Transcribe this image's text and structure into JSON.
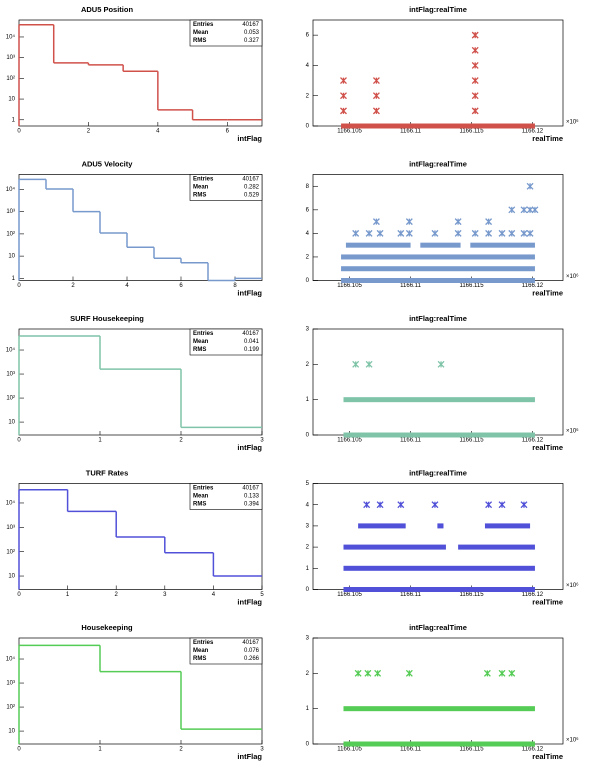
{
  "chart_data": [
    {
      "type": "histogram",
      "title": "ADU5 Position",
      "xlabel": "intFlag",
      "color": "#d0504a",
      "log_y": true,
      "bins": [
        0,
        1,
        2,
        3,
        4,
        5,
        6,
        7
      ],
      "counts": [
        38930,
        560,
        450,
        220,
        3,
        1,
        1
      ],
      "xlim": [
        0,
        7
      ],
      "xticks": [
        0,
        2,
        4,
        6
      ],
      "ylim": [
        0.5,
        66000
      ],
      "yticks": [
        1,
        10,
        {
          "value": 100,
          "label": "10²"
        },
        {
          "value": 1000,
          "label": "10³"
        },
        {
          "value": 10000,
          "label": "10⁴"
        }
      ],
      "stats": [
        {
          "label": "Entries",
          "value": 40167
        },
        {
          "label": "Mean",
          "value": 0.053
        },
        {
          "label": "RMS",
          "value": 0.327
        }
      ]
    },
    {
      "type": "scatter",
      "title": "intFlag:realTime",
      "xlabel": "realTime",
      "x_exponent": "×10⁶",
      "color": "#d0504a",
      "xlim": [
        1166.102,
        1166.1225
      ],
      "xticks": [
        1166.105,
        1166.11,
        1166.115,
        1166.12
      ],
      "ylim": [
        0,
        7
      ],
      "yticks": [
        0,
        2,
        4,
        6
      ],
      "bands": [
        {
          "y": 0,
          "x": [
            1166.1043,
            1166.1202
          ]
        }
      ],
      "points": {
        "x": [
          1166.1045,
          1166.1045,
          1166.1045,
          1166.1072,
          1166.1072,
          1166.1072,
          1166.1153,
          1166.1153,
          1166.1153,
          1166.1153,
          1166.1153,
          1166.1153
        ],
        "y": [
          1,
          2,
          3,
          1,
          2,
          3,
          1,
          2,
          3,
          4,
          5,
          6
        ]
      }
    },
    {
      "type": "histogram",
      "title": "ADU5 Velocity",
      "xlabel": "intFlag",
      "color": "#7799cc",
      "log_y": true,
      "bins": [
        0,
        1,
        2,
        3,
        4,
        5,
        6,
        7,
        8,
        9
      ],
      "counts": [
        28500,
        10500,
        1000,
        110,
        25,
        8,
        5,
        0,
        1
      ],
      "xlim": [
        0,
        9
      ],
      "xticks": [
        0,
        2,
        4,
        6,
        8
      ],
      "ylim": [
        0.8,
        47000
      ],
      "yticks": [
        1,
        10,
        {
          "value": 100,
          "label": "10²"
        },
        {
          "value": 1000,
          "label": "10³"
        },
        {
          "value": 10000,
          "label": "10⁴"
        }
      ],
      "stats": [
        {
          "label": "Entries",
          "value": 40167
        },
        {
          "label": "Mean",
          "value": 0.282
        },
        {
          "label": "RMS",
          "value": 0.529
        }
      ]
    },
    {
      "type": "scatter",
      "title": "intFlag:realTime",
      "xlabel": "realTime",
      "x_exponent": "×10⁶",
      "color": "#7799cc",
      "xlim": [
        1166.102,
        1166.1225
      ],
      "xticks": [
        1166.105,
        1166.11,
        1166.115,
        1166.12
      ],
      "ylim": [
        0,
        9
      ],
      "yticks": [
        0,
        2,
        4,
        6,
        8
      ],
      "bands": [
        {
          "y": 0,
          "x": [
            1166.1043,
            1166.1202
          ]
        },
        {
          "y": 1,
          "x": [
            1166.1043,
            1166.1202
          ]
        },
        {
          "y": 2,
          "x": [
            1166.1043,
            1166.1202
          ]
        },
        {
          "y": 3,
          "x": [
            1166.1047,
            1166.11
          ]
        },
        {
          "y": 3,
          "x": [
            1166.1108,
            1166.1141
          ]
        },
        {
          "y": 3,
          "x": [
            1166.1149,
            1166.1202
          ]
        }
      ],
      "points": {
        "x": [
          1166.1055,
          1166.1066,
          1166.1075,
          1166.1092,
          1166.1099,
          1166.112,
          1166.1139,
          1166.1153,
          1166.1164,
          1166.1175,
          1166.1183,
          1166.1193,
          1166.1198,
          1166.1072,
          1166.1099,
          1166.1139,
          1166.1164,
          1166.1183,
          1166.1193,
          1166.1198,
          1166.1198,
          1166.1202
        ],
        "y": [
          4,
          4,
          4,
          4,
          4,
          4,
          4,
          4,
          4,
          4,
          4,
          4,
          4,
          5,
          5,
          5,
          5,
          6,
          6,
          6,
          8,
          6
        ]
      }
    },
    {
      "type": "histogram",
      "title": "SURF Housekeeping",
      "xlabel": "intFlag",
      "color": "#7fc4a8",
      "log_y": true,
      "bins": [
        0,
        1,
        2,
        3
      ],
      "counts": [
        38560,
        1600,
        6
      ],
      "xlim": [
        0,
        3
      ],
      "xticks": [
        0,
        1,
        2,
        3
      ],
      "ylim": [
        2.9,
        75000
      ],
      "yticks": [
        10,
        {
          "value": 100,
          "label": "10²"
        },
        {
          "value": 1000,
          "label": "10³"
        },
        {
          "value": 10000,
          "label": "10⁴"
        }
      ],
      "stats": [
        {
          "label": "Entries",
          "value": 40167
        },
        {
          "label": "Mean",
          "value": 0.041
        },
        {
          "label": "RMS",
          "value": 0.199
        }
      ]
    },
    {
      "type": "scatter",
      "title": "intFlag:realTime",
      "xlabel": "realTime",
      "x_exponent": "×10⁶",
      "color": "#7fc4a8",
      "xlim": [
        1166.102,
        1166.1225
      ],
      "xticks": [
        1166.105,
        1166.11,
        1166.115,
        1166.12
      ],
      "ylim": [
        0,
        3
      ],
      "yticks": [
        0,
        1,
        2,
        3
      ],
      "bands": [
        {
          "y": 0,
          "x": [
            1166.1045,
            1166.1202
          ]
        },
        {
          "y": 1,
          "x": [
            1166.1045,
            1166.1202
          ]
        }
      ],
      "points": {
        "x": [
          1166.1055,
          1166.1066,
          1166.1125
        ],
        "y": [
          2,
          2,
          2
        ]
      }
    },
    {
      "type": "histogram",
      "title": "TURF Rates",
      "xlabel": "intFlag",
      "color": "#5050d8",
      "log_y": true,
      "bins": [
        0,
        1,
        2,
        3,
        4,
        5
      ],
      "counts": [
        35000,
        4500,
        400,
        90,
        10
      ],
      "xlim": [
        0,
        5
      ],
      "xticks": [
        0,
        1,
        2,
        3,
        4,
        5
      ],
      "ylim": [
        2.8,
        63000
      ],
      "yticks": [
        10,
        {
          "value": 100,
          "label": "10²"
        },
        {
          "value": 1000,
          "label": "10³"
        },
        {
          "value": 10000,
          "label": "10⁴"
        }
      ],
      "stats": [
        {
          "label": "Entries",
          "value": 40167
        },
        {
          "label": "Mean",
          "value": 0.133
        },
        {
          "label": "RMS",
          "value": 0.394
        }
      ]
    },
    {
      "type": "scatter",
      "title": "intFlag:realTime",
      "xlabel": "realTime",
      "x_exponent": "×10⁶",
      "color": "#5050d8",
      "xlim": [
        1166.102,
        1166.1225
      ],
      "xticks": [
        1166.105,
        1166.11,
        1166.115,
        1166.12
      ],
      "ylim": [
        0,
        5
      ],
      "yticks": [
        0,
        1,
        2,
        3,
        4,
        5
      ],
      "bands": [
        {
          "y": 0,
          "x": [
            1166.1045,
            1166.1202
          ]
        },
        {
          "y": 1,
          "x": [
            1166.1045,
            1166.1202
          ]
        },
        {
          "y": 2,
          "x": [
            1166.1045,
            1166.1129
          ]
        },
        {
          "y": 2,
          "x": [
            1166.1139,
            1166.1202
          ]
        },
        {
          "y": 3,
          "x": [
            1166.1057,
            1166.1096
          ]
        },
        {
          "y": 3,
          "x": [
            1166.1122,
            1166.1127
          ]
        },
        {
          "y": 3,
          "x": [
            1166.1161,
            1166.1198
          ]
        }
      ],
      "points": {
        "x": [
          1166.1064,
          1166.1075,
          1166.1092,
          1166.112,
          1166.1164,
          1166.1175,
          1166.1193
        ],
        "y": [
          4,
          4,
          4,
          4,
          4,
          4,
          4
        ]
      }
    },
    {
      "type": "histogram",
      "title": "Housekeeping",
      "xlabel": "intFlag",
      "color": "#55cc55",
      "log_y": true,
      "bins": [
        0,
        1,
        2,
        3
      ],
      "counts": [
        37150,
        3000,
        12
      ],
      "xlim": [
        0,
        3
      ],
      "xticks": [
        0,
        1,
        2,
        3
      ],
      "ylim": [
        2.9,
        75000
      ],
      "yticks": [
        10,
        {
          "value": 100,
          "label": "10²"
        },
        {
          "value": 1000,
          "label": "10³"
        },
        {
          "value": 10000,
          "label": "10⁴"
        }
      ],
      "stats": [
        {
          "label": "Entries",
          "value": 40167
        },
        {
          "label": "Mean",
          "value": 0.076
        },
        {
          "label": "RMS",
          "value": 0.266
        }
      ]
    },
    {
      "type": "scatter",
      "title": "intFlag:realTime",
      "xlabel": "realTime",
      "x_exponent": "×10⁶",
      "color": "#55cc55",
      "xlim": [
        1166.102,
        1166.1225
      ],
      "xticks": [
        1166.105,
        1166.11,
        1166.115,
        1166.12
      ],
      "ylim": [
        0,
        3
      ],
      "yticks": [
        0,
        1,
        2,
        3
      ],
      "bands": [
        {
          "y": 0,
          "x": [
            1166.1045,
            1166.1202
          ]
        },
        {
          "y": 1,
          "x": [
            1166.1045,
            1166.1202
          ]
        }
      ],
      "points": {
        "x": [
          1166.1057,
          1166.1065,
          1166.1073,
          1166.1099,
          1166.1163,
          1166.1175,
          1166.1183
        ],
        "y": [
          2,
          2,
          2,
          2,
          2,
          2,
          2
        ]
      }
    }
  ]
}
